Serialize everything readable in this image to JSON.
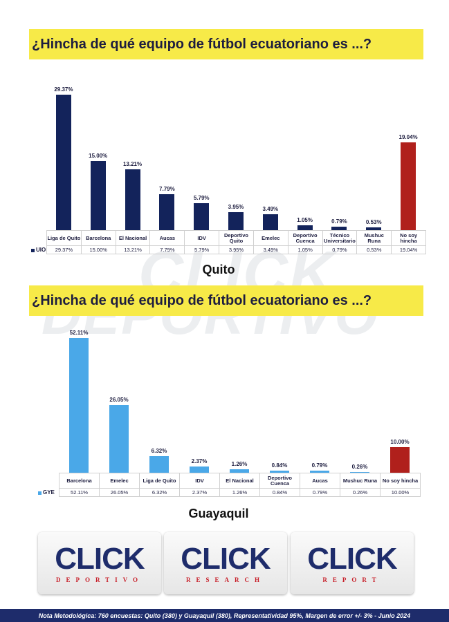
{
  "chart_data": [
    {
      "type": "bar",
      "title": "¿Hincha de qué equipo de fútbol ecuatoriano es ...?",
      "categories": [
        "Liga de Quito",
        "Barcelona",
        "El Nacional",
        "Aucas",
        "IDV",
        "Deportivo Quito",
        "Emelec",
        "Deportivo Cuenca",
        "Técnico Universitario",
        "Mushuc Runa",
        "No soy hincha"
      ],
      "series": [
        {
          "name": "UIO",
          "color": "#13235b",
          "values": [
            29.37,
            15.0,
            13.21,
            7.79,
            5.79,
            3.95,
            3.49,
            1.05,
            0.79,
            0.53,
            19.04
          ],
          "value_labels": [
            "29.37%",
            "15.00%",
            "13.21%",
            "7.79%",
            "5.79%",
            "3.95%",
            "3.49%",
            "1.05%",
            "0.79%",
            "0.53%",
            "19.04%"
          ],
          "colors": [
            "#13235b",
            "#13235b",
            "#13235b",
            "#13235b",
            "#13235b",
            "#13235b",
            "#13235b",
            "#13235b",
            "#13235b",
            "#13235b",
            "#b0201c"
          ]
        }
      ],
      "ylim": [
        0,
        30
      ],
      "caption": "Quito"
    },
    {
      "type": "bar",
      "title": "¿Hincha de qué equipo de fútbol ecuatoriano es ...?",
      "categories": [
        "Barcelona",
        "Emelec",
        "Liga de Quito",
        "IDV",
        "El Nacional",
        "Deportivo Cuenca",
        "Aucas",
        "Mushuc Runa",
        "No soy hincha"
      ],
      "series": [
        {
          "name": "GYE",
          "color": "#4aa8e8",
          "values": [
            52.11,
            26.05,
            6.32,
            2.37,
            1.26,
            0.84,
            0.79,
            0.26,
            10.0
          ],
          "value_labels": [
            "52.11%",
            "26.05%",
            "6.32%",
            "2.37%",
            "1.26%",
            "0.84%",
            "0.79%",
            "0.26%",
            "10.00%"
          ],
          "colors": [
            "#4aa8e8",
            "#4aa8e8",
            "#4aa8e8",
            "#4aa8e8",
            "#4aa8e8",
            "#4aa8e8",
            "#4aa8e8",
            "#4aa8e8",
            "#b0201c"
          ]
        }
      ],
      "ylim": [
        0,
        55
      ],
      "caption": "Guayaquil"
    }
  ],
  "watermark": [
    "CLICK",
    "DEPORTIVO"
  ],
  "logos": [
    {
      "word": "CLICK",
      "sub": "DEPORTIVO"
    },
    {
      "word": "CLICK",
      "sub": "RESEARCH"
    },
    {
      "word": "CLICK",
      "sub": "REPORT"
    }
  ],
  "note": "Nota Metodológica: 760 encuestas: Quito (380) y Guayaquil (380), Representatividad 95%, Margen de error +/- 3% - Junio  2024"
}
